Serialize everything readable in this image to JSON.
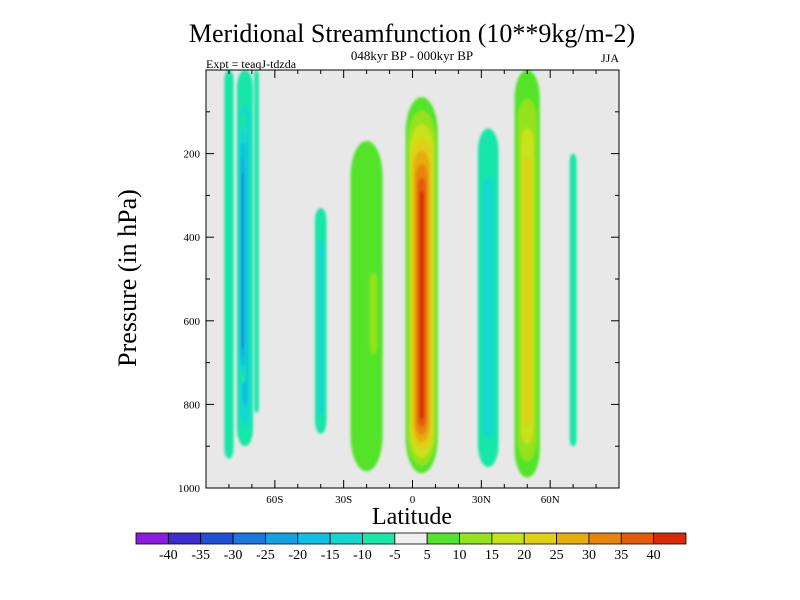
{
  "chart_data": {
    "type": "heatmap",
    "title": "Meridional Streamfunction (10**9kg/m-2)",
    "subtitle": "048kyr BP - 000kyr BP",
    "left_label": "Expt = teaqJ-tdzda",
    "right_label": "JJA",
    "xlabel": "Latitude",
    "ylabel": "Pressure (in hPa)",
    "xlim": [
      -90,
      90
    ],
    "ylim": [
      0,
      1000
    ],
    "y_inverted": true,
    "xticks": [
      {
        "value": -60,
        "label": "60S"
      },
      {
        "value": -30,
        "label": "30S"
      },
      {
        "value": 0,
        "label": "0"
      },
      {
        "value": 30,
        "label": "30N"
      },
      {
        "value": 60,
        "label": "60N"
      }
    ],
    "yticks": [
      {
        "value": 200,
        "label": "200"
      },
      {
        "value": 400,
        "label": "400"
      },
      {
        "value": 600,
        "label": "600"
      },
      {
        "value": 800,
        "label": "800"
      },
      {
        "value": 1000,
        "label": "1000"
      }
    ],
    "background_color": "#e8e8e8",
    "colorbar": {
      "levels": [
        -40,
        -35,
        -30,
        -25,
        -20,
        -15,
        -10,
        -5,
        5,
        10,
        15,
        20,
        25,
        30,
        35,
        40
      ],
      "labels": [
        "-40",
        "-35",
        "-30",
        "-25",
        "-20",
        "-15",
        "-10",
        "-5",
        "5",
        "10",
        "15",
        "20",
        "25",
        "30",
        "35",
        "40"
      ],
      "colors": [
        "#8a1de0",
        "#3a2ccf",
        "#1f4fd6",
        "#1b78dc",
        "#14a2e4",
        "#10bfe2",
        "#14d8d0",
        "#19e6a8",
        "#efefef",
        "#52e42a",
        "#95e21e",
        "#c8e21a",
        "#e0d012",
        "#e6ac0c",
        "#e6840c",
        "#e45a08",
        "#d82a04"
      ]
    },
    "features": [
      {
        "name": "SH outer positive strip",
        "lat": -80,
        "p_top": 0,
        "p_bottom": 930,
        "value": -8,
        "width_deg": 4
      },
      {
        "name": "SH negative cell",
        "lat": -73,
        "p_top": 0,
        "p_bottom": 900,
        "value": -20,
        "width_deg": 7
      },
      {
        "name": "SH negative core",
        "lat": -74,
        "p_top": 100,
        "p_bottom": 750,
        "value": -28,
        "width_deg": 3
      },
      {
        "name": "SH thin strip",
        "lat": -68,
        "p_top": 0,
        "p_bottom": 820,
        "value": -10,
        "width_deg": 2
      },
      {
        "name": "Southern midlat cell",
        "lat": -40,
        "p_top": 330,
        "p_bottom": 870,
        "value": -12,
        "width_deg": 5
      },
      {
        "name": "Southern subtropical cell",
        "lat": -20,
        "p_top": 170,
        "p_bottom": 960,
        "value": 8,
        "width_deg": 14
      },
      {
        "name": "Southern subtropical core",
        "lat": -17,
        "p_top": 450,
        "p_bottom": 700,
        "value": 13,
        "width_deg": 6
      },
      {
        "name": "Equatorial Hadley cell",
        "lat": 4,
        "p_top": 65,
        "p_bottom": 965,
        "value": 40,
        "width_deg": 14
      },
      {
        "name": "Northern midlat negative",
        "lat": 33,
        "p_top": 140,
        "p_bottom": 950,
        "value": -15,
        "width_deg": 9
      },
      {
        "name": "Northern positive cell",
        "lat": 50,
        "p_top": 0,
        "p_bottom": 975,
        "value": 23,
        "width_deg": 11
      },
      {
        "name": "High latitude strip",
        "lat": 70,
        "p_top": 200,
        "p_bottom": 900,
        "value": -10,
        "width_deg": 3
      }
    ]
  }
}
